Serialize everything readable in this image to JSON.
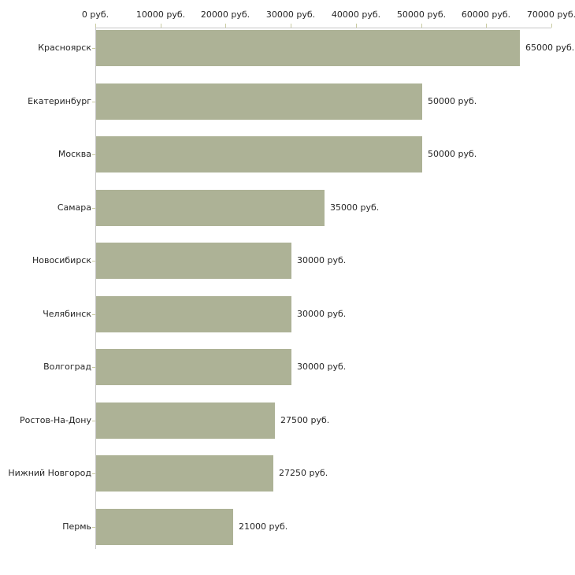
{
  "chart_data": {
    "type": "bar",
    "orientation": "horizontal",
    "title": "",
    "categories": [
      "Красноярск",
      "Екатеринбург",
      "Москва",
      "Самара",
      "Новосибирск",
      "Челябинск",
      "Волгоград",
      "Ростов-На-Дону",
      "Нижний Новгород",
      "Пермь"
    ],
    "values": [
      65000,
      50000,
      50000,
      35000,
      30000,
      30000,
      30000,
      27500,
      27250,
      21000
    ],
    "value_labels": [
      "65000 руб.",
      "50000 руб.",
      "50000 руб.",
      "35000 руб.",
      "30000 руб.",
      "30000 руб.",
      "30000 руб.",
      "27500 руб.",
      "27250 руб.",
      "21000 руб."
    ],
    "x_tick_labels": [
      "0 руб.",
      "10000 руб.",
      "20000 руб.",
      "30000 руб.",
      "40000 руб.",
      "50000 руб.",
      "60000 руб.",
      "70000 руб."
    ],
    "xlim": [
      0,
      70000
    ],
    "grid": false,
    "legend": "none",
    "colors": {
      "bar": "#adb296",
      "axis_line": "#c6c6c6",
      "tick": "#c9cba1",
      "text": "#262626",
      "background": "#ffffff"
    }
  }
}
